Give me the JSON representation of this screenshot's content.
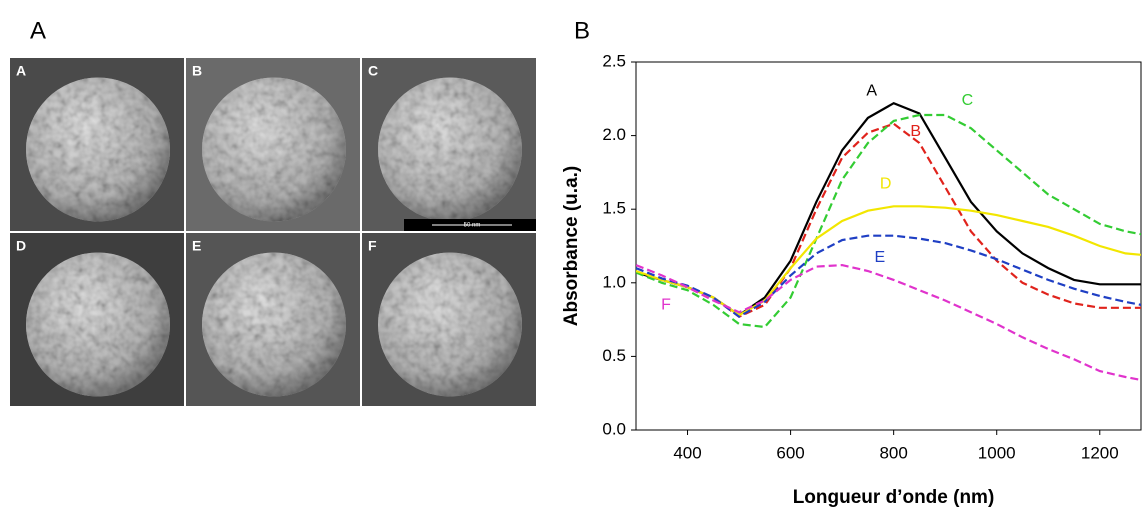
{
  "figure": {
    "panel_a": {
      "label": "A",
      "images": [
        {
          "label": "A"
        },
        {
          "label": "B"
        },
        {
          "label": "C"
        },
        {
          "label": "D"
        },
        {
          "label": "E"
        },
        {
          "label": "F"
        }
      ],
      "scale_bar": "50 nm"
    },
    "panel_b": {
      "label": "B"
    }
  },
  "chart_data": {
    "type": "line",
    "xlabel": "Longueur d’onde (nm)",
    "ylabel": "Absorbance (u.a.)",
    "x": [
      300,
      350,
      400,
      450,
      500,
      550,
      600,
      650,
      700,
      750,
      800,
      850,
      900,
      950,
      1000,
      1050,
      1100,
      1150,
      1200,
      1250,
      1280
    ],
    "series": [
      {
        "name": "A",
        "color": "#000000",
        "style": "solid",
        "values": [
          1.07,
          1.02,
          0.97,
          0.9,
          0.78,
          0.9,
          1.15,
          1.55,
          1.9,
          2.12,
          2.22,
          2.15,
          1.85,
          1.55,
          1.35,
          1.2,
          1.1,
          1.02,
          0.99,
          0.99,
          0.99
        ]
      },
      {
        "name": "B",
        "color": "#e0231c",
        "style": "dashed",
        "values": [
          1.07,
          1.02,
          0.97,
          0.9,
          0.77,
          0.85,
          1.1,
          1.5,
          1.85,
          2.02,
          2.08,
          1.95,
          1.65,
          1.35,
          1.15,
          1.0,
          0.92,
          0.86,
          0.83,
          0.83,
          0.83
        ]
      },
      {
        "name": "C",
        "color": "#33cc33",
        "style": "dashed",
        "values": [
          1.07,
          1.0,
          0.95,
          0.85,
          0.72,
          0.7,
          0.9,
          1.3,
          1.7,
          1.95,
          2.1,
          2.14,
          2.14,
          2.05,
          1.9,
          1.75,
          1.6,
          1.5,
          1.4,
          1.35,
          1.33
        ]
      },
      {
        "name": "D",
        "color": "#f2e600",
        "style": "solid",
        "values": [
          1.08,
          1.02,
          0.97,
          0.9,
          0.78,
          0.88,
          1.1,
          1.3,
          1.42,
          1.49,
          1.52,
          1.52,
          1.51,
          1.49,
          1.46,
          1.42,
          1.38,
          1.32,
          1.25,
          1.2,
          1.19
        ]
      },
      {
        "name": "E",
        "color": "#1f3fc4",
        "style": "dashed",
        "values": [
          1.1,
          1.03,
          0.98,
          0.9,
          0.77,
          0.87,
          1.05,
          1.2,
          1.29,
          1.32,
          1.32,
          1.3,
          1.27,
          1.22,
          1.16,
          1.09,
          1.02,
          0.96,
          0.91,
          0.87,
          0.85
        ]
      },
      {
        "name": "F",
        "color": "#e033cc",
        "style": "dashed",
        "values": [
          1.12,
          1.05,
          0.97,
          0.88,
          0.8,
          0.88,
          1.02,
          1.11,
          1.12,
          1.08,
          1.02,
          0.95,
          0.88,
          0.8,
          0.72,
          0.63,
          0.55,
          0.48,
          0.4,
          0.36,
          0.34
        ]
      }
    ],
    "xlim": [
      300,
      1280
    ],
    "ylim": [
      0,
      2.5
    ],
    "xticks": [
      400,
      600,
      800,
      1000,
      1200
    ],
    "yticks": [
      {
        "value": 0,
        "label": "0.0"
      },
      0.5,
      {
        "value": 1,
        "label": "1.0"
      },
      1.5,
      {
        "value": 2,
        "label": "2.0"
      },
      2.5
    ]
  }
}
